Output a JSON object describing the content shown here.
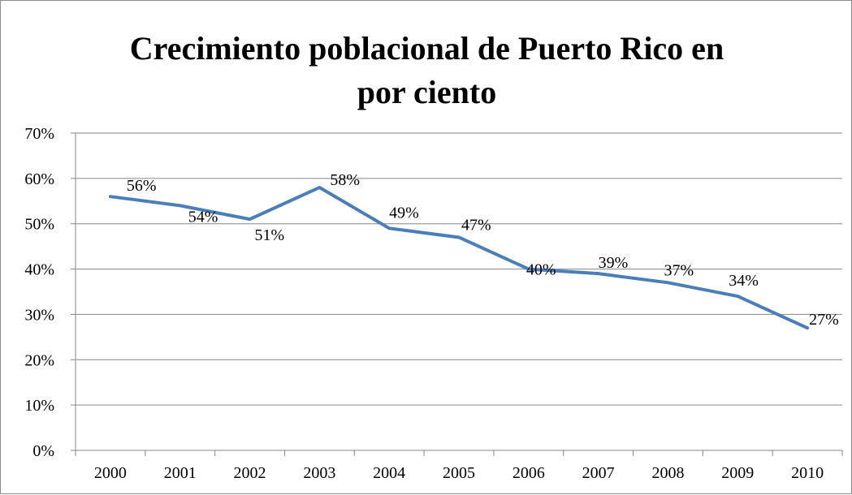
{
  "chart_data": {
    "type": "line",
    "title": "Crecimiento poblacional de Puerto Rico en por ciento",
    "title_lines": [
      "Crecimiento poblacional de Puerto Rico en",
      "por ciento"
    ],
    "xlabel": "",
    "ylabel": "",
    "categories": [
      "2000",
      "2001",
      "2002",
      "2003",
      "2004",
      "2005",
      "2006",
      "2007",
      "2008",
      "2009",
      "2010"
    ],
    "series": [
      {
        "values": [
          56,
          54,
          51,
          58,
          49,
          47,
          40,
          39,
          37,
          34,
          27
        ],
        "data_labels": [
          "56%",
          "54%",
          "51%",
          "58%",
          "49%",
          "47%",
          "40%",
          "39%",
          "37%",
          "34%",
          "27%"
        ],
        "color": "#4a7ebb"
      }
    ],
    "ylim": [
      0,
      70
    ],
    "yticks": [
      0,
      10,
      20,
      30,
      40,
      50,
      60,
      70
    ],
    "ytick_labels": [
      "0%",
      "10%",
      "20%",
      "30%",
      "40%",
      "50%",
      "60%",
      "70%"
    ],
    "grid": true,
    "legend": "none",
    "gridline_color": "#868686"
  }
}
